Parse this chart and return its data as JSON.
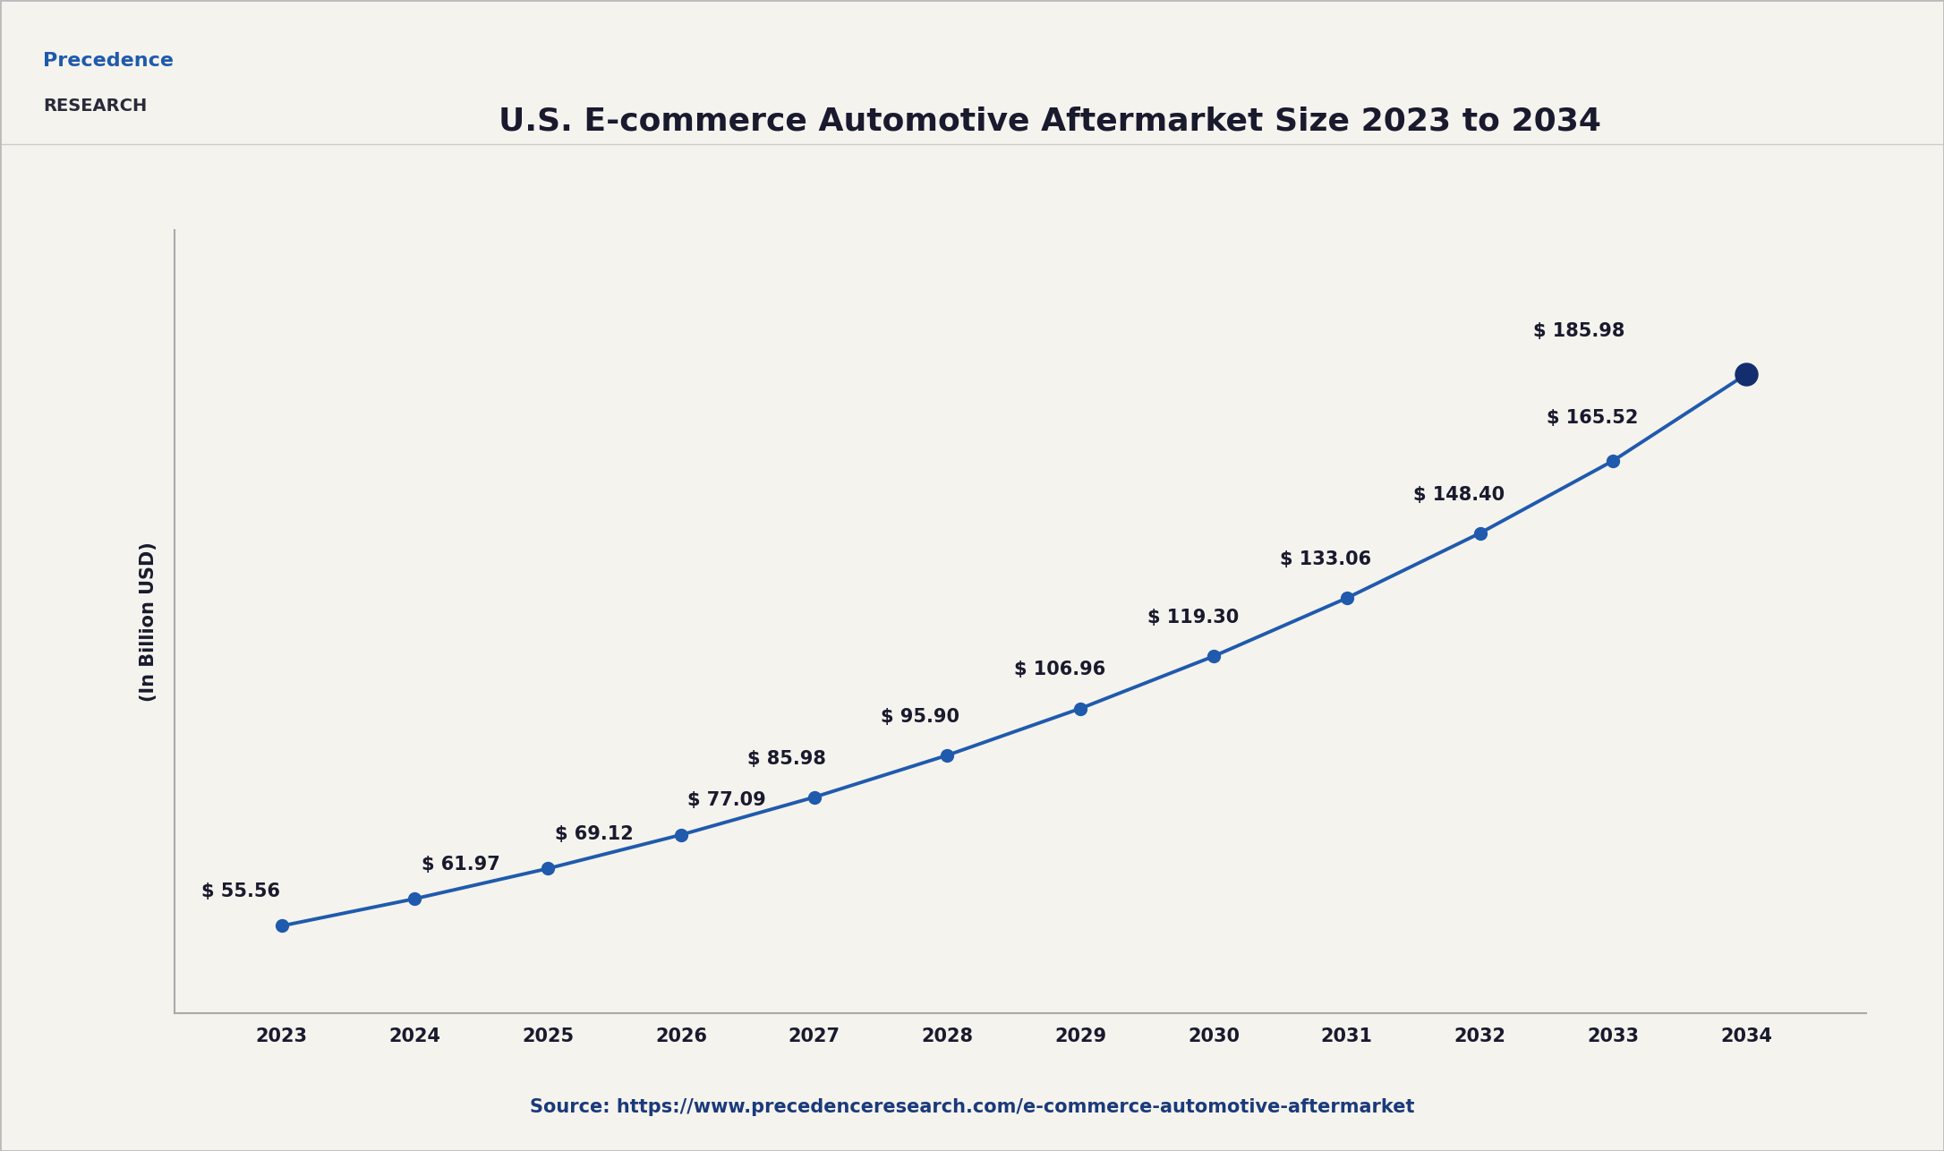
{
  "title": "U.S. E-commerce Automotive Aftermarket Size 2023 to 2034",
  "ylabel": "(In Billion USD)",
  "source": "Source: https://www.precedenceresearch.com/e-commerce-automotive-aftermarket",
  "years": [
    2023,
    2024,
    2025,
    2026,
    2027,
    2028,
    2029,
    2030,
    2031,
    2032,
    2033,
    2034
  ],
  "values": [
    55.56,
    61.97,
    69.12,
    77.09,
    85.98,
    95.9,
    106.96,
    119.3,
    133.06,
    148.4,
    165.52,
    185.98
  ],
  "line_color": "#1f5aad",
  "marker_color": "#1f5aad",
  "last_marker_color": "#132d6e",
  "bg_color": "#f5f3ee",
  "plot_bg_color": "#f5f3ee",
  "title_color": "#1a1a2e",
  "label_color": "#1a1a2e",
  "source_color": "#1a3a7a",
  "title_fontsize": 26,
  "ylabel_fontsize": 15,
  "tick_fontsize": 15,
  "annot_fontsize": 15,
  "source_fontsize": 15,
  "annot_offsets": [
    [
      -0.6,
      6,
      "left"
    ],
    [
      0.05,
      6,
      "left"
    ],
    [
      0.05,
      6,
      "left"
    ],
    [
      0.05,
      6,
      "left"
    ],
    [
      -0.5,
      7,
      "left"
    ],
    [
      -0.5,
      7,
      "left"
    ],
    [
      -0.5,
      7,
      "left"
    ],
    [
      -0.5,
      7,
      "left"
    ],
    [
      -0.5,
      7,
      "left"
    ],
    [
      -0.5,
      7,
      "left"
    ],
    [
      -0.5,
      8,
      "left"
    ],
    [
      -1.6,
      8,
      "left"
    ]
  ]
}
